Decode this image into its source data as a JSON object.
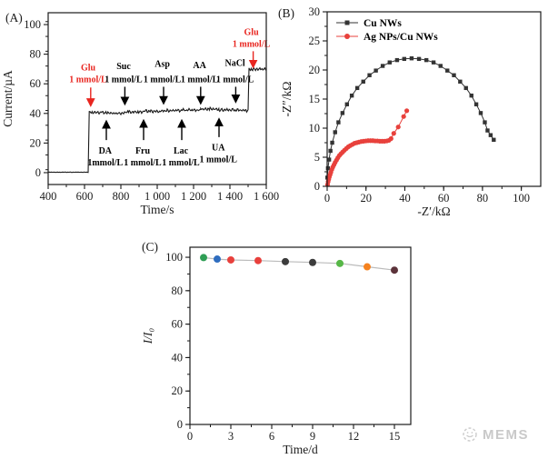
{
  "watermark": {
    "text": "MEMS",
    "icon": "hand-globe-icon",
    "color": "#c9c9c9"
  },
  "chart_data": [
    {
      "panel_label": "(A)",
      "type": "line",
      "subtype": "amperometric-trace",
      "title": "",
      "xlabel": "Time/s",
      "ylabel": "Current/µA",
      "xlim": [
        400,
        1600
      ],
      "ylim": [
        -8,
        108
      ],
      "x_ticks": {
        "values": [
          400,
          600,
          800,
          1000,
          1200,
          1400,
          1600
        ],
        "labels": [
          "400",
          "600",
          "800",
          "1 000",
          "1 200",
          "1 400",
          "1 600"
        ],
        "minor_step": 100
      },
      "y_ticks": {
        "values": [
          0,
          20,
          40,
          60,
          80,
          100
        ],
        "labels": [
          "0",
          "20",
          "40",
          "60",
          "80",
          "100"
        ],
        "minor_step": 10
      },
      "line_color": "#1a1a1a",
      "trace_segments": [
        {
          "x0": 400,
          "x1": 622,
          "y": 0.3,
          "noise": 0.15
        },
        {
          "x0": 626,
          "x1": 720,
          "y": 40.6,
          "noise": 0.9
        },
        {
          "x0": 720,
          "x1": 822,
          "y": 40.2,
          "noise": 0.9
        },
        {
          "x0": 822,
          "x1": 925,
          "y": 41.0,
          "noise": 1.0
        },
        {
          "x0": 925,
          "x1": 1035,
          "y": 41.5,
          "noise": 1.0
        },
        {
          "x0": 1035,
          "x1": 1135,
          "y": 41.9,
          "noise": 1.0
        },
        {
          "x0": 1135,
          "x1": 1239,
          "y": 42.2,
          "noise": 1.0
        },
        {
          "x0": 1239,
          "x1": 1340,
          "y": 43.0,
          "noise": 1.0
        },
        {
          "x0": 1340,
          "x1": 1432,
          "y": 42.3,
          "noise": 1.0
        },
        {
          "x0": 1432,
          "x1": 1501,
          "y": 42.0,
          "noise": 1.0
        },
        {
          "x0": 1505,
          "x1": 1600,
          "y": 69.8,
          "noise": 1.1
        }
      ],
      "annotations": {
        "above": [
          {
            "name": "Glu",
            "conc": "1 mmol/L",
            "color": "#e8251f",
            "x": 634,
            "text_x": 620,
            "name_y": 69,
            "conc_y": 61,
            "arrow_from": 57.5,
            "arrow_to": 45.5
          },
          {
            "name": "Suc",
            "conc": "1 mmol/L",
            "color": "#000000",
            "x": 822,
            "text_x": 815,
            "name_y": 70,
            "conc_y": 61,
            "arrow_from": 58,
            "arrow_to": 46.5
          },
          {
            "name": "Asp",
            "conc": "1 mmol/L",
            "color": "#000000",
            "x": 1035,
            "text_x": 1028,
            "name_y": 71.5,
            "conc_y": 61,
            "arrow_from": 58,
            "arrow_to": 47
          },
          {
            "name": "AA",
            "conc": "1 mmol/L",
            "color": "#000000",
            "x": 1239,
            "text_x": 1233,
            "name_y": 70.5,
            "conc_y": 61,
            "arrow_from": 58,
            "arrow_to": 47
          },
          {
            "name": "NaCl",
            "conc": "1 mmol/L",
            "color": "#000000",
            "x": 1432,
            "text_x": 1428,
            "name_y": 72,
            "conc_y": 61,
            "arrow_from": 58,
            "arrow_to": 48
          },
          {
            "name": "Glu",
            "conc": "1 mmol/L",
            "color": "#e8251f",
            "x": 1528,
            "text_x": 1518,
            "name_y": 93,
            "conc_y": 85,
            "arrow_from": 82,
            "arrow_to": 71.5
          }
        ],
        "below": [
          {
            "name": "DA",
            "conc": "1mmol/L",
            "color": "#000000",
            "x": 720,
            "text_x": 714,
            "name_y": 13,
            "conc_y": 5,
            "arrow_from": 22,
            "arrow_to": 34.5
          },
          {
            "name": "Fru",
            "conc": "1 mmol/L",
            "color": "#000000",
            "x": 925,
            "text_x": 920,
            "name_y": 13,
            "conc_y": 5,
            "arrow_from": 22,
            "arrow_to": 35
          },
          {
            "name": "Lac",
            "conc": "1 mmol/L",
            "color": "#000000",
            "x": 1135,
            "text_x": 1130,
            "name_y": 13,
            "conc_y": 5,
            "arrow_from": 22,
            "arrow_to": 35
          },
          {
            "name": "UA",
            "conc": "1 mmol/L",
            "color": "#000000",
            "x": 1340,
            "text_x": 1336,
            "name_y": 15,
            "conc_y": 7,
            "arrow_from": 24,
            "arrow_to": 36
          }
        ]
      }
    },
    {
      "panel_label": "(B)",
      "type": "scatter",
      "subtype": "nyquist",
      "title": "",
      "xlabel": "-Z′/kΩ",
      "ylabel": "-Z″/kΩ",
      "xlim": [
        0,
        110
      ],
      "ylim": [
        0,
        30
      ],
      "x_ticks": {
        "values": [
          0,
          20,
          40,
          60,
          80,
          100
        ],
        "labels": [
          "0",
          "20",
          "40",
          "60",
          "80",
          "100"
        ],
        "minor_step": 10
      },
      "y_ticks": {
        "values": [
          0,
          5,
          10,
          15,
          20,
          25,
          30
        ],
        "labels": [
          "0",
          "5",
          "10",
          "15",
          "20",
          "25",
          "30"
        ],
        "minor_step": 2.5
      },
      "legend": {
        "position": "top-left"
      },
      "series": [
        {
          "name": "Cu NWs",
          "marker": "square",
          "color": "#333333",
          "points": [
            [
              0.1,
              1.5
            ],
            [
              0.4,
              3.1
            ],
            [
              1.0,
              4.6
            ],
            [
              1.7,
              6.1
            ],
            [
              2.6,
              7.5
            ],
            [
              4.1,
              9.3
            ],
            [
              5.8,
              11.0
            ],
            [
              7.9,
              12.6
            ],
            [
              10.2,
              14.1
            ],
            [
              12.7,
              15.6
            ],
            [
              15.5,
              16.9
            ],
            [
              18.6,
              18.0
            ],
            [
              21.8,
              19.1
            ],
            [
              25.1,
              19.9
            ],
            [
              28.6,
              20.7
            ],
            [
              32.2,
              21.3
            ],
            [
              36.0,
              21.7
            ],
            [
              39.7,
              21.9
            ],
            [
              43.5,
              22.0
            ],
            [
              47.3,
              21.9
            ],
            [
              51.1,
              21.7
            ],
            [
              54.8,
              21.3
            ],
            [
              58.4,
              20.7
            ],
            [
              61.9,
              19.9
            ],
            [
              65.3,
              19.1
            ],
            [
              68.5,
              18.0
            ],
            [
              71.5,
              16.9
            ],
            [
              74.3,
              15.6
            ],
            [
              76.8,
              14.1
            ],
            [
              79.1,
              12.6
            ],
            [
              81.2,
              11.0
            ],
            [
              82.6,
              9.6
            ],
            [
              84.2,
              8.8
            ],
            [
              85.8,
              8.0
            ]
          ]
        },
        {
          "name": "Ag NPs/Cu NWs",
          "marker": "circle",
          "color": "#e8413c",
          "points": [
            [
              0.2,
              0.3
            ],
            [
              0.5,
              0.8
            ],
            [
              0.8,
              1.2
            ],
            [
              1.1,
              1.6
            ],
            [
              1.5,
              2.0
            ],
            [
              1.9,
              2.4
            ],
            [
              2.4,
              2.9
            ],
            [
              2.9,
              3.3
            ],
            [
              3.5,
              3.7
            ],
            [
              4.1,
              4.1
            ],
            [
              4.8,
              4.5
            ],
            [
              5.5,
              4.9
            ],
            [
              6.3,
              5.3
            ],
            [
              7.1,
              5.6
            ],
            [
              8.0,
              5.9
            ],
            [
              8.9,
              6.2
            ],
            [
              9.9,
              6.5
            ],
            [
              10.9,
              6.8
            ],
            [
              11.9,
              7.0
            ],
            [
              13.0,
              7.2
            ],
            [
              14.1,
              7.4
            ],
            [
              15.2,
              7.5
            ],
            [
              16.3,
              7.6
            ],
            [
              17.5,
              7.7
            ],
            [
              18.7,
              7.75
            ],
            [
              19.9,
              7.8
            ],
            [
              21.1,
              7.85
            ],
            [
              22.3,
              7.85
            ],
            [
              23.5,
              7.85
            ],
            [
              24.7,
              7.8
            ],
            [
              25.9,
              7.8
            ],
            [
              27.1,
              7.75
            ],
            [
              28.3,
              7.75
            ],
            [
              29.5,
              7.75
            ],
            [
              30.7,
              7.8
            ],
            [
              31.8,
              7.9
            ],
            [
              32.9,
              8.2
            ],
            [
              34.3,
              9.1
            ],
            [
              36.6,
              10.2
            ],
            [
              39.4,
              12.0
            ],
            [
              41.0,
              13.0
            ]
          ]
        }
      ]
    },
    {
      "panel_label": "(C)",
      "type": "scatter",
      "subtype": "stability",
      "title": "",
      "xlabel": "Time/d",
      "ylabel": "I/I₀",
      "ylabel_italic": true,
      "xlim": [
        0,
        16.2
      ],
      "ylim": [
        0,
        106
      ],
      "x_ticks": {
        "values": [
          0,
          3,
          6,
          9,
          12,
          15
        ],
        "labels": [
          "0",
          "3",
          "6",
          "9",
          "12",
          "15"
        ],
        "minor_step": 1.5
      },
      "y_ticks": {
        "values": [
          0,
          20,
          40,
          60,
          80,
          100
        ],
        "labels": [
          "0",
          "20",
          "40",
          "60",
          "80",
          "100"
        ],
        "minor_step": 10
      },
      "line_color": "#bbbbbb",
      "points": [
        {
          "x": 1,
          "y": 99.8,
          "color": "#2f9e55"
        },
        {
          "x": 2,
          "y": 98.9,
          "color": "#2f6dbf"
        },
        {
          "x": 3,
          "y": 98.4,
          "color": "#e8403c"
        },
        {
          "x": 5,
          "y": 98.0,
          "color": "#e8403c"
        },
        {
          "x": 7,
          "y": 97.4,
          "color": "#3c3c3c"
        },
        {
          "x": 9,
          "y": 96.9,
          "color": "#3c3c3c"
        },
        {
          "x": 11,
          "y": 96.3,
          "color": "#57b747"
        },
        {
          "x": 13,
          "y": 94.3,
          "color": "#f5821f"
        },
        {
          "x": 15,
          "y": 92.3,
          "color": "#5c333a"
        }
      ]
    }
  ]
}
